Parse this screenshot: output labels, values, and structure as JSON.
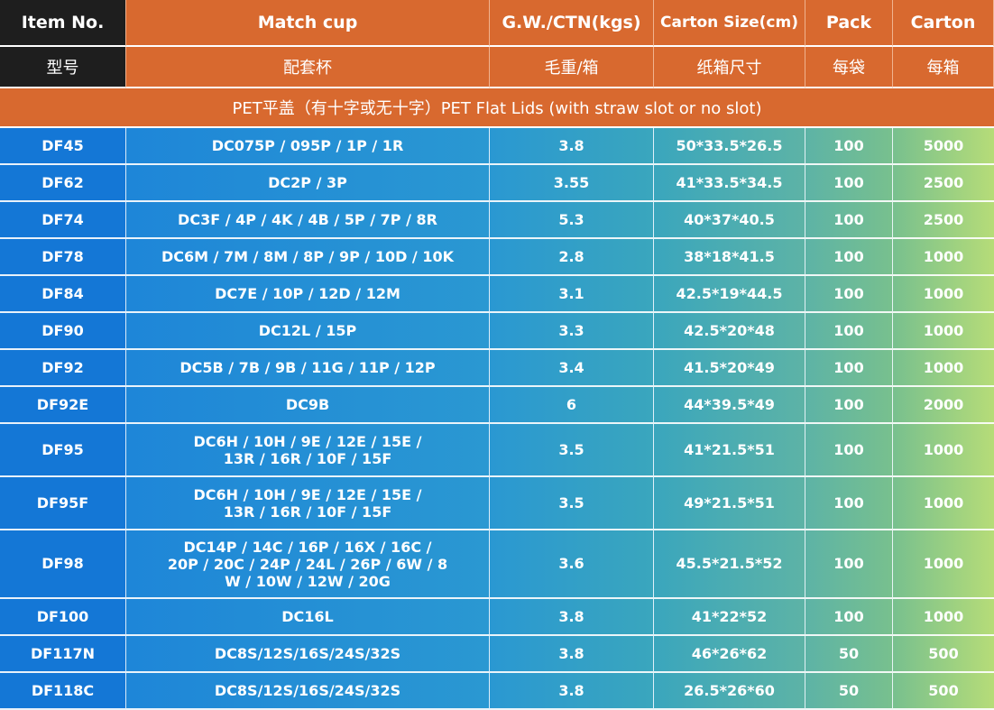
{
  "header": {
    "en": [
      "Item No.",
      "Match cup",
      "G.W./CTN(kgs)",
      "Carton Size(cm)",
      "Pack",
      "Carton"
    ],
    "zh": [
      "型号",
      "配套杯",
      "毛重/箱",
      "纸箱尺寸",
      "每袋",
      "每箱"
    ]
  },
  "section_title": "PET平盖（有十字或无十字）PET Flat Lids (with straw slot or no slot)",
  "rows": [
    {
      "item": "DF45",
      "cup": [
        "DC075P / 095P / 1P / 1R"
      ],
      "gw": "3.8",
      "size": "50*33.5*26.5",
      "pack": "100",
      "carton": "5000"
    },
    {
      "item": "DF62",
      "cup": [
        "DC2P / 3P"
      ],
      "gw": "3.55",
      "size": "41*33.5*34.5",
      "pack": "100",
      "carton": "2500"
    },
    {
      "item": "DF74",
      "cup": [
        "DC3F / 4P / 4K / 4B / 5P / 7P / 8R"
      ],
      "gw": "5.3",
      "size": "40*37*40.5",
      "pack": "100",
      "carton": "2500"
    },
    {
      "item": "DF78",
      "cup": [
        "DC6M / 7M / 8M / 8P / 9P / 10D / 10K"
      ],
      "gw": "2.8",
      "size": "38*18*41.5",
      "pack": "100",
      "carton": "1000"
    },
    {
      "item": "DF84",
      "cup": [
        "DC7E / 10P / 12D / 12M"
      ],
      "gw": "3.1",
      "size": "42.5*19*44.5",
      "pack": "100",
      "carton": "1000"
    },
    {
      "item": "DF90",
      "cup": [
        "DC12L / 15P"
      ],
      "gw": "3.3",
      "size": "42.5*20*48",
      "pack": "100",
      "carton": "1000"
    },
    {
      "item": "DF92",
      "cup": [
        "DC5B / 7B / 9B / 11G / 11P / 12P"
      ],
      "gw": "3.4",
      "size": "41.5*20*49",
      "pack": "100",
      "carton": "1000"
    },
    {
      "item": "DF92E",
      "cup": [
        "DC9B"
      ],
      "gw": "6",
      "size": "44*39.5*49",
      "pack": "100",
      "carton": "2000"
    },
    {
      "item": "DF95",
      "cup": [
        "DC6H / 10H / 9E / 12E / 15E /",
        "13R / 16R / 10F / 15F"
      ],
      "gw": "3.5",
      "size": "41*21.5*51",
      "pack": "100",
      "carton": "1000"
    },
    {
      "item": "DF95F",
      "cup": [
        "DC6H / 10H / 9E / 12E / 15E /",
        "13R / 16R / 10F / 15F"
      ],
      "gw": "3.5",
      "size": "49*21.5*51",
      "pack": "100",
      "carton": "1000"
    },
    {
      "item": "DF98",
      "cup": [
        "DC14P / 14C / 16P / 16X / 16C /",
        "20P / 20C / 24P / 24L / 26P / 6W / 8",
        "W / 10W / 12W / 20G"
      ],
      "gw": "3.6",
      "size": "45.5*21.5*52",
      "pack": "100",
      "carton": "1000"
    },
    {
      "item": "DF100",
      "cup": [
        "DC16L"
      ],
      "gw": "3.8",
      "size": "41*22*52",
      "pack": "100",
      "carton": "1000"
    },
    {
      "item": "DF117N",
      "cup": [
        "DC8S/12S/16S/24S/32S"
      ],
      "gw": "3.8",
      "size": "46*26*62",
      "pack": "50",
      "carton": "500"
    },
    {
      "item": "DF118C",
      "cup": [
        "DC8S/12S/16S/24S/32S"
      ],
      "gw": "3.8",
      "size": "26.5*26*60",
      "pack": "50",
      "carton": "500"
    }
  ]
}
